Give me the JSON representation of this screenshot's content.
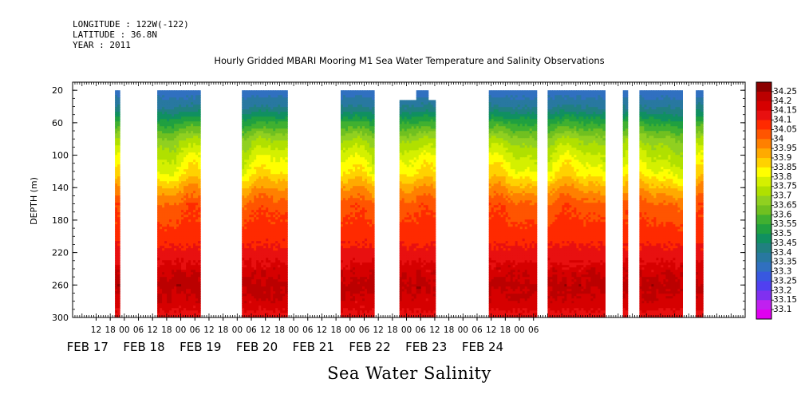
{
  "header": {
    "longitude": "LONGITUDE : 122W(-122)",
    "latitude": "LATITUDE : 36.8N",
    "year": "YEAR : 2011"
  },
  "chart_data": {
    "type": "heatmap",
    "title": "Hourly Gridded MBARI Mooring M1 Sea Water Temperature and Salinity Observations",
    "xlabel": "",
    "ylabel": "DEPTH (m)",
    "bottom_label": "Sea Water Salinity",
    "ylim": [
      300,
      10
    ],
    "y_ticks": [
      "20",
      "60",
      "100",
      "140",
      "180",
      "220",
      "260",
      "300"
    ],
    "hour_ticks": [
      "12",
      "18",
      "00",
      "06",
      "12",
      "18",
      "00",
      "06",
      "12",
      "18",
      "00",
      "06",
      "12",
      "18",
      "00",
      "06",
      "12",
      "18",
      "00",
      "06",
      "12",
      "18",
      "00",
      "06",
      "12",
      "18",
      "00",
      "06",
      "12",
      "18",
      "00",
      "06"
    ],
    "day_labels": [
      "FEB 17",
      "FEB 18",
      "FEB 19",
      "FEB 20",
      "FEB 21",
      "FEB 22",
      "FEB 23",
      "FEB 24"
    ],
    "data_segments": [
      {
        "start_hours": 44,
        "end_hours": 46
      },
      {
        "start_hours": 62,
        "end_hours": 80
      },
      {
        "start_hours": 98,
        "end_hours": 117
      },
      {
        "start_hours": 140,
        "end_hours": 154
      },
      {
        "start_hours": 165,
        "end_hours": 180
      },
      {
        "start_hours": 203,
        "end_hours": 223
      },
      {
        "start_hours": 228,
        "end_hours": 252
      },
      {
        "start_hours": 260,
        "end_hours": 262
      },
      {
        "start_hours": 267,
        "end_hours": 285
      },
      {
        "start_hours": 291,
        "end_hours": 294
      }
    ],
    "colorbar": {
      "levels": [
        "34.25",
        "34.2",
        "34.15",
        "34.1",
        "34.05",
        "34",
        "33.95",
        "33.9",
        "33.85",
        "33.8",
        "33.75",
        "33.7",
        "33.65",
        "33.6",
        "33.55",
        "33.5",
        "33.45",
        "33.4",
        "33.35",
        "33.3",
        "33.25",
        "33.2",
        "33.15",
        "33.1"
      ],
      "colors": [
        "#8b0000",
        "#bb0000",
        "#d60000",
        "#e81010",
        "#ff2a00",
        "#ff5500",
        "#ff8000",
        "#ffaa00",
        "#ffd200",
        "#ffff00",
        "#d4f000",
        "#b0e000",
        "#90d020",
        "#70c020",
        "#40b030",
        "#20a040",
        "#109060",
        "#208080",
        "#2878a0",
        "#3070c0",
        "#3858e0",
        "#5040f0",
        "#8030f0",
        "#c020f0",
        "#e000f0"
      ]
    },
    "profile_depths": [
      20,
      40,
      60,
      80,
      100,
      120,
      140,
      160,
      180,
      200,
      220,
      240,
      260,
      280,
      300
    ],
    "profile_salinity": [
      33.32,
      33.4,
      33.55,
      33.68,
      33.76,
      33.82,
      33.93,
      34.02,
      34.05,
      34.08,
      34.12,
      34.18,
      34.22,
      34.18,
      34.12
    ]
  }
}
